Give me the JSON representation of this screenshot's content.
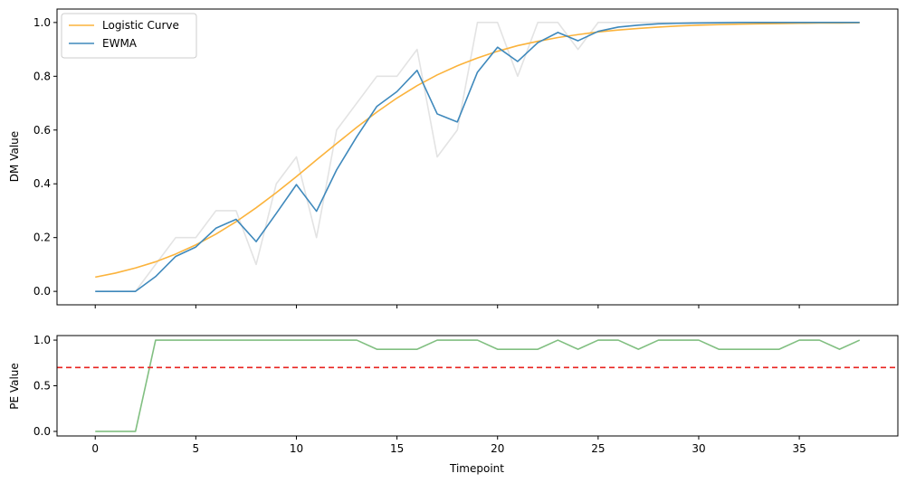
{
  "chart_data": [
    {
      "type": "line",
      "panel": "top",
      "title": "",
      "xlabel": "",
      "ylabel": "DM Value",
      "xlim": [
        -1.9,
        39.9
      ],
      "ylim": [
        -0.05,
        1.05
      ],
      "xticks": [
        0,
        5,
        10,
        15,
        20,
        25,
        30,
        35
      ],
      "yticks": [
        0.0,
        0.2,
        0.4,
        0.6,
        0.8,
        1.0
      ],
      "ytick_labels": [
        "0.0",
        "0.2",
        "0.4",
        "0.6",
        "0.8",
        "1.0"
      ],
      "grid": false,
      "legend": "top-left",
      "x": [
        0,
        1,
        2,
        3,
        4,
        5,
        6,
        7,
        8,
        9,
        10,
        11,
        12,
        13,
        14,
        15,
        16,
        17,
        18,
        19,
        20,
        21,
        22,
        23,
        24,
        25,
        26,
        27,
        28,
        29,
        30,
        31,
        32,
        33,
        34,
        35,
        36,
        37,
        38
      ],
      "series": [
        {
          "name": "",
          "color": "#e3e3e3",
          "values": [
            0,
            0,
            0,
            0.1,
            0.2,
            0.2,
            0.3,
            0.3,
            0.1,
            0.4,
            0.5,
            0.2,
            0.6,
            0.7,
            0.8,
            0.8,
            0.9,
            0.5,
            0.6,
            1.0,
            1.0,
            0.8,
            1.0,
            1.0,
            0.9,
            1.0,
            1.0,
            1.0,
            1.0,
            1.0,
            1.0,
            1.0,
            1.0,
            1.0,
            1.0,
            1.0,
            1.0,
            1.0,
            1.0
          ]
        },
        {
          "name": "Logistic Curve",
          "color": "#fbb33c",
          "values": [
            0.053,
            0.068,
            0.087,
            0.11,
            0.139,
            0.173,
            0.213,
            0.259,
            0.311,
            0.367,
            0.427,
            0.489,
            0.55,
            0.61,
            0.667,
            0.719,
            0.765,
            0.805,
            0.839,
            0.868,
            0.893,
            0.914,
            0.93,
            0.944,
            0.955,
            0.965,
            0.972,
            0.978,
            0.983,
            0.987,
            0.99,
            0.992,
            0.994,
            0.995,
            0.996,
            0.997,
            0.998,
            0.998,
            0.999
          ]
        },
        {
          "name": "EWMA",
          "color": "#3f89bc",
          "values": [
            0,
            0,
            0,
            0.055,
            0.13,
            0.165,
            0.235,
            0.268,
            0.185,
            0.29,
            0.397,
            0.298,
            0.452,
            0.575,
            0.688,
            0.743,
            0.822,
            0.66,
            0.63,
            0.815,
            0.908,
            0.855,
            0.925,
            0.963,
            0.932,
            0.967,
            0.983,
            0.99,
            0.995,
            0.997,
            0.998,
            0.999,
            1.0,
            1.0,
            1.0,
            1.0,
            1.0,
            1.0,
            1.0
          ]
        }
      ]
    },
    {
      "type": "line",
      "panel": "bottom",
      "title": "",
      "xlabel": "Timepoint",
      "ylabel": "PE Value",
      "xlim": [
        -1.9,
        39.9
      ],
      "ylim": [
        -0.05,
        1.05
      ],
      "xticks": [
        0,
        5,
        10,
        15,
        20,
        25,
        30,
        35
      ],
      "yticks": [
        0.0,
        0.5,
        1.0
      ],
      "ytick_labels": [
        "0.0",
        "0.5",
        "1.0"
      ],
      "grid": false,
      "x": [
        0,
        1,
        2,
        3,
        4,
        5,
        6,
        7,
        8,
        9,
        10,
        11,
        12,
        13,
        14,
        15,
        16,
        17,
        18,
        19,
        20,
        21,
        22,
        23,
        24,
        25,
        26,
        27,
        28,
        29,
        30,
        31,
        32,
        33,
        34,
        35,
        36,
        37,
        38
      ],
      "series": [
        {
          "name": "",
          "color": "#81bf81",
          "values": [
            0,
            0,
            0,
            1,
            1,
            1,
            1,
            1,
            1,
            1,
            1,
            1,
            1,
            1,
            0.9,
            0.9,
            0.9,
            1,
            1,
            1,
            0.9,
            0.9,
            0.9,
            1,
            0.9,
            1,
            1,
            0.9,
            1,
            1,
            1,
            0.9,
            0.9,
            0.9,
            0.9,
            1,
            1,
            0.9,
            1
          ]
        }
      ],
      "threshold": {
        "value": 0.7,
        "color": "#e8231f",
        "style": "dashed"
      }
    }
  ]
}
